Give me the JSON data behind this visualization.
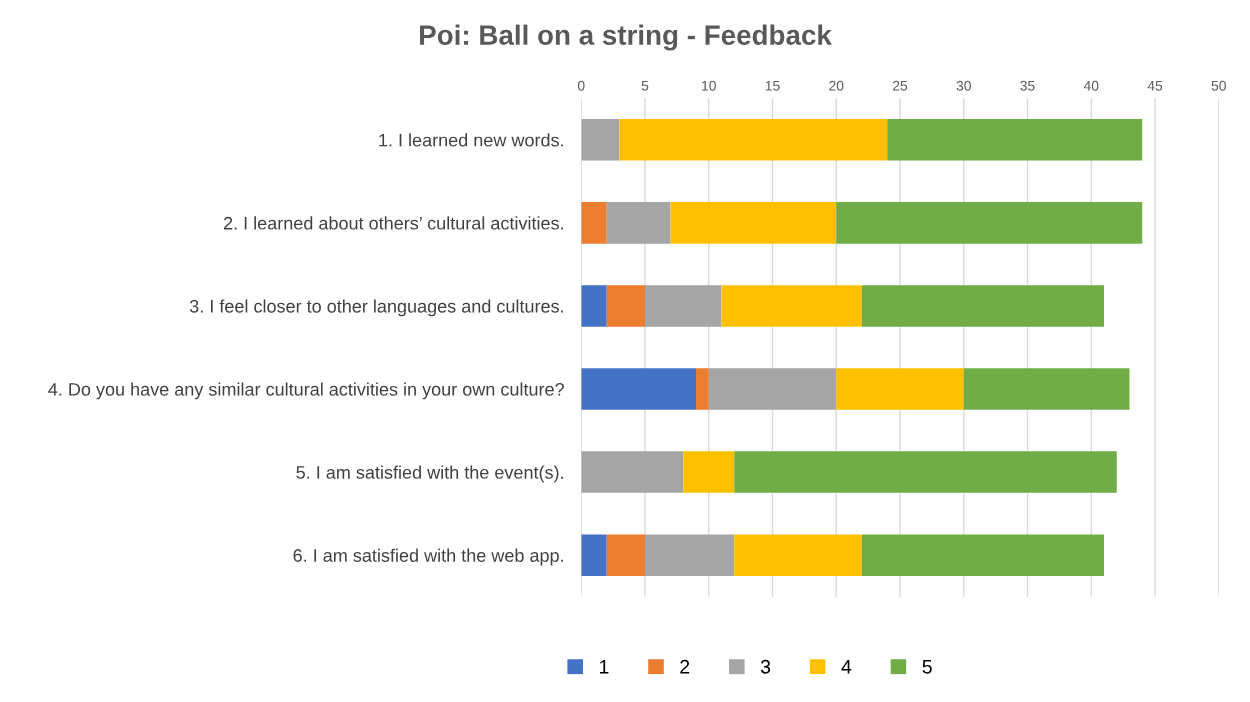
{
  "chart_data": {
    "type": "bar",
    "orientation": "horizontal",
    "stacked": true,
    "title": "Poi: Ball on a string - Feedback",
    "categories": [
      "1. I learned new words.",
      "2. I learned about others’ cultural activities.",
      "3. I feel closer to other languages and cultures.",
      "4. Do you have any similar cultural activities in your own culture?",
      "5. I am satisfied with the event(s).",
      "6. I am satisfied with the web app."
    ],
    "series": [
      {
        "name": "1",
        "color": "#4472c4",
        "values": [
          0,
          0,
          2,
          9,
          0,
          2
        ]
      },
      {
        "name": "2",
        "color": "#ed7d31",
        "values": [
          0,
          2,
          3,
          1,
          0,
          3
        ]
      },
      {
        "name": "3",
        "color": "#a5a5a5",
        "values": [
          3,
          5,
          6,
          10,
          8,
          7
        ]
      },
      {
        "name": "4",
        "color": "#ffc000",
        "values": [
          21,
          13,
          11,
          10,
          4,
          10
        ]
      },
      {
        "name": "5",
        "color": "#70ad47",
        "values": [
          20,
          24,
          19,
          13,
          30,
          19
        ]
      }
    ],
    "xlim": [
      0,
      50
    ],
    "xticks": [
      0,
      5,
      10,
      15,
      20,
      25,
      30,
      35,
      40,
      45,
      50
    ],
    "grid": "x",
    "legend": "bottom"
  }
}
